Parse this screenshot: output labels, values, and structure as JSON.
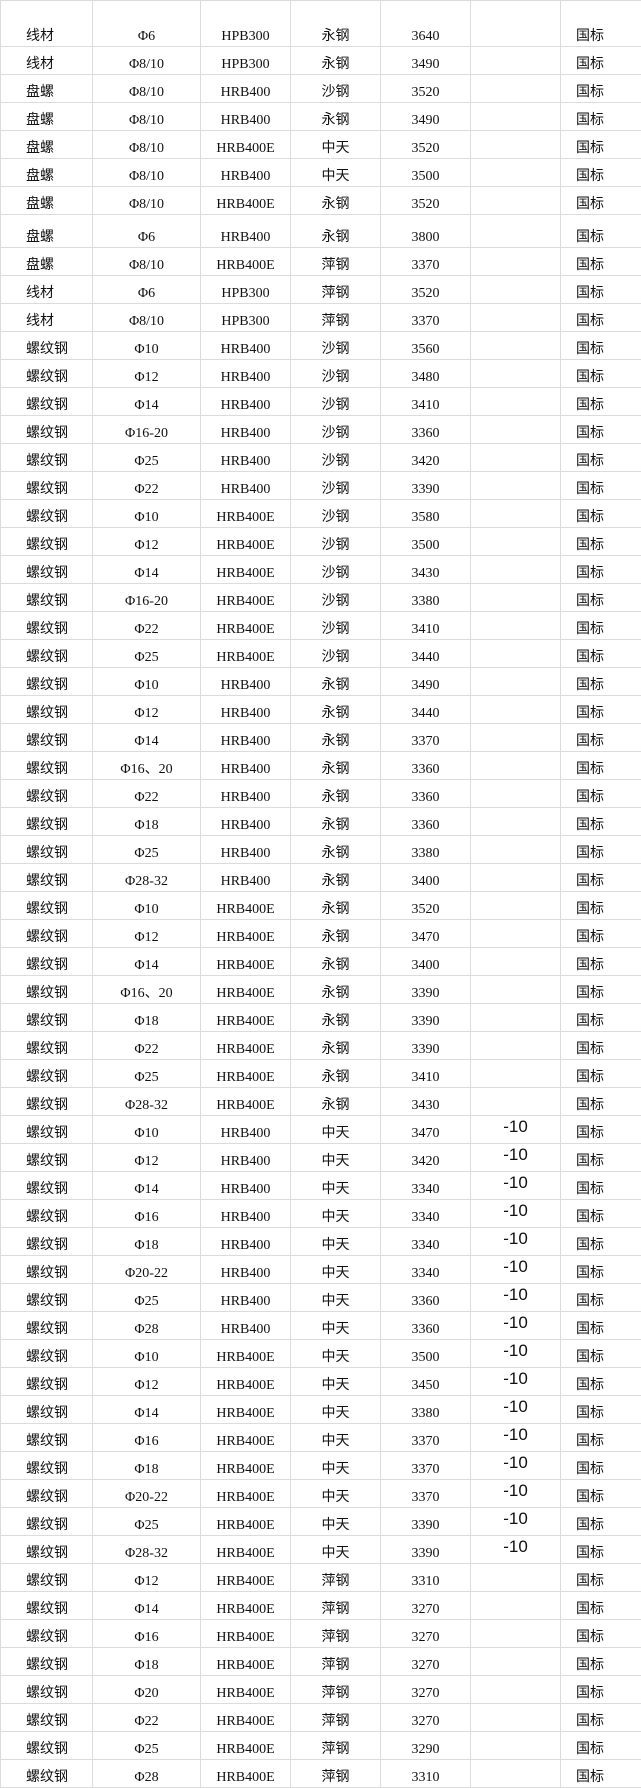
{
  "table": {
    "rows": [
      [
        "线材",
        "Φ6",
        "HPB300",
        "永钢",
        "3640",
        "",
        "国标"
      ],
      [
        "线材",
        "Φ8/10",
        "HPB300",
        "永钢",
        "3490",
        "",
        "国标"
      ],
      [
        "盘螺",
        "Φ8/10",
        "HRB400",
        "沙钢",
        "3520",
        "",
        "国标"
      ],
      [
        "盘螺",
        "Φ8/10",
        "HRB400",
        "永钢",
        "3490",
        "",
        "国标"
      ],
      [
        "盘螺",
        "Φ8/10",
        "HRB400E",
        "中天",
        "3520",
        "",
        "国标"
      ],
      [
        "盘螺",
        "Φ8/10",
        "HRB400",
        "中天",
        "3500",
        "",
        "国标"
      ],
      [
        "盘螺",
        "Φ8/10",
        "HRB400E",
        "永钢",
        "3520",
        "",
        "国标"
      ],
      [
        "盘螺",
        "Φ6",
        "HRB400",
        "永钢",
        "3800",
        "",
        "国标"
      ],
      [
        "盘螺",
        "Φ8/10",
        "HRB400E",
        "萍钢",
        "3370",
        "",
        "国标"
      ],
      [
        "线材",
        "Φ6",
        "HPB300",
        "萍钢",
        "3520",
        "",
        "国标"
      ],
      [
        "线材",
        "Φ8/10",
        "HPB300",
        "萍钢",
        "3370",
        "",
        "国标"
      ],
      [
        "螺纹钢",
        "Φ10",
        "HRB400",
        "沙钢",
        "3560",
        "",
        "国标"
      ],
      [
        "螺纹钢",
        "Φ12",
        "HRB400",
        "沙钢",
        "3480",
        "",
        "国标"
      ],
      [
        "螺纹钢",
        "Φ14",
        "HRB400",
        "沙钢",
        "3410",
        "",
        "国标"
      ],
      [
        "螺纹钢",
        "Φ16-20",
        "HRB400",
        "沙钢",
        "3360",
        "",
        "国标"
      ],
      [
        "螺纹钢",
        "Φ25",
        "HRB400",
        "沙钢",
        "3420",
        "",
        "国标"
      ],
      [
        "螺纹钢",
        "Φ22",
        "HRB400",
        "沙钢",
        "3390",
        "",
        "国标"
      ],
      [
        "螺纹钢",
        "Φ10",
        "HRB400E",
        "沙钢",
        "3580",
        "",
        "国标"
      ],
      [
        "螺纹钢",
        "Φ12",
        "HRB400E",
        "沙钢",
        "3500",
        "",
        "国标"
      ],
      [
        "螺纹钢",
        "Φ14",
        "HRB400E",
        "沙钢",
        "3430",
        "",
        "国标"
      ],
      [
        "螺纹钢",
        "Φ16-20",
        "HRB400E",
        "沙钢",
        "3380",
        "",
        "国标"
      ],
      [
        "螺纹钢",
        "Φ22",
        "HRB400E",
        "沙钢",
        "3410",
        "",
        "国标"
      ],
      [
        "螺纹钢",
        "Φ25",
        "HRB400E",
        "沙钢",
        "3440",
        "",
        "国标"
      ],
      [
        "螺纹钢",
        "Φ10",
        "HRB400",
        "永钢",
        "3490",
        "",
        "国标"
      ],
      [
        "螺纹钢",
        "Φ12",
        "HRB400",
        "永钢",
        "3440",
        "",
        "国标"
      ],
      [
        "螺纹钢",
        "Φ14",
        "HRB400",
        "永钢",
        "3370",
        "",
        "国标"
      ],
      [
        "螺纹钢",
        "Φ16、20",
        "HRB400",
        "永钢",
        "3360",
        "",
        "国标"
      ],
      [
        "螺纹钢",
        "Φ22",
        "HRB400",
        "永钢",
        "3360",
        "",
        "国标"
      ],
      [
        "螺纹钢",
        "Φ18",
        "HRB400",
        "永钢",
        "3360",
        "",
        "国标"
      ],
      [
        "螺纹钢",
        "Φ25",
        "HRB400",
        "永钢",
        "3380",
        "",
        "国标"
      ],
      [
        "螺纹钢",
        "Φ28-32",
        "HRB400",
        "永钢",
        "3400",
        "",
        "国标"
      ],
      [
        "螺纹钢",
        "Φ10",
        "HRB400E",
        "永钢",
        "3520",
        "",
        "国标"
      ],
      [
        "螺纹钢",
        "Φ12",
        "HRB400E",
        "永钢",
        "3470",
        "",
        "国标"
      ],
      [
        "螺纹钢",
        "Φ14",
        "HRB400E",
        "永钢",
        "3400",
        "",
        "国标"
      ],
      [
        "螺纹钢",
        "Φ16、20",
        "HRB400E",
        "永钢",
        "3390",
        "",
        "国标"
      ],
      [
        "螺纹钢",
        "Φ18",
        "HRB400E",
        "永钢",
        "3390",
        "",
        "国标"
      ],
      [
        "螺纹钢",
        "Φ22",
        "HRB400E",
        "永钢",
        "3390",
        "",
        "国标"
      ],
      [
        "螺纹钢",
        "Φ25",
        "HRB400E",
        "永钢",
        "3410",
        "",
        "国标"
      ],
      [
        "螺纹钢",
        "Φ28-32",
        "HRB400E",
        "永钢",
        "3430",
        "",
        "国标"
      ],
      [
        "螺纹钢",
        "Φ10",
        "HRB400",
        "中天",
        "3470",
        "-10",
        "国标"
      ],
      [
        "螺纹钢",
        "Φ12",
        "HRB400",
        "中天",
        "3420",
        "-10",
        "国标"
      ],
      [
        "螺纹钢",
        "Φ14",
        "HRB400",
        "中天",
        "3340",
        "-10",
        "国标"
      ],
      [
        "螺纹钢",
        "Φ16",
        "HRB400",
        "中天",
        "3340",
        "-10",
        "国标"
      ],
      [
        "螺纹钢",
        "Φ18",
        "HRB400",
        "中天",
        "3340",
        "-10",
        "国标"
      ],
      [
        "螺纹钢",
        "Φ20-22",
        "HRB400",
        "中天",
        "3340",
        "-10",
        "国标"
      ],
      [
        "螺纹钢",
        "Φ25",
        "HRB400",
        "中天",
        "3360",
        "-10",
        "国标"
      ],
      [
        "螺纹钢",
        "Φ28",
        "HRB400",
        "中天",
        "3360",
        "-10",
        "国标"
      ],
      [
        "螺纹钢",
        "Φ10",
        "HRB400E",
        "中天",
        "3500",
        "-10",
        "国标"
      ],
      [
        "螺纹钢",
        "Φ12",
        "HRB400E",
        "中天",
        "3450",
        "-10",
        "国标"
      ],
      [
        "螺纹钢",
        "Φ14",
        "HRB400E",
        "中天",
        "3380",
        "-10",
        "国标"
      ],
      [
        "螺纹钢",
        "Φ16",
        "HRB400E",
        "中天",
        "3370",
        "-10",
        "国标"
      ],
      [
        "螺纹钢",
        "Φ18",
        "HRB400E",
        "中天",
        "3370",
        "-10",
        "国标"
      ],
      [
        "螺纹钢",
        "Φ20-22",
        "HRB400E",
        "中天",
        "3370",
        "-10",
        "国标"
      ],
      [
        "螺纹钢",
        "Φ25",
        "HRB400E",
        "中天",
        "3390",
        "-10",
        "国标"
      ],
      [
        "螺纹钢",
        "Φ28-32",
        "HRB400E",
        "中天",
        "3390",
        "-10",
        "国标"
      ],
      [
        "螺纹钢",
        "Φ12",
        "HRB400E",
        "萍钢",
        "3310",
        "",
        "国标"
      ],
      [
        "螺纹钢",
        "Φ14",
        "HRB400E",
        "萍钢",
        "3270",
        "",
        "国标"
      ],
      [
        "螺纹钢",
        "Φ16",
        "HRB400E",
        "萍钢",
        "3270",
        "",
        "国标"
      ],
      [
        "螺纹钢",
        "Φ18",
        "HRB400E",
        "萍钢",
        "3270",
        "",
        "国标"
      ],
      [
        "螺纹钢",
        "Φ20",
        "HRB400E",
        "萍钢",
        "3270",
        "",
        "国标"
      ],
      [
        "螺纹钢",
        "Φ22",
        "HRB400E",
        "萍钢",
        "3270",
        "",
        "国标"
      ],
      [
        "螺纹钢",
        "Φ25",
        "HRB400E",
        "萍钢",
        "3290",
        "",
        "国标"
      ],
      [
        "螺纹钢",
        "Φ28",
        "HRB400E",
        "萍钢",
        "3310",
        "",
        "国标"
      ]
    ]
  }
}
